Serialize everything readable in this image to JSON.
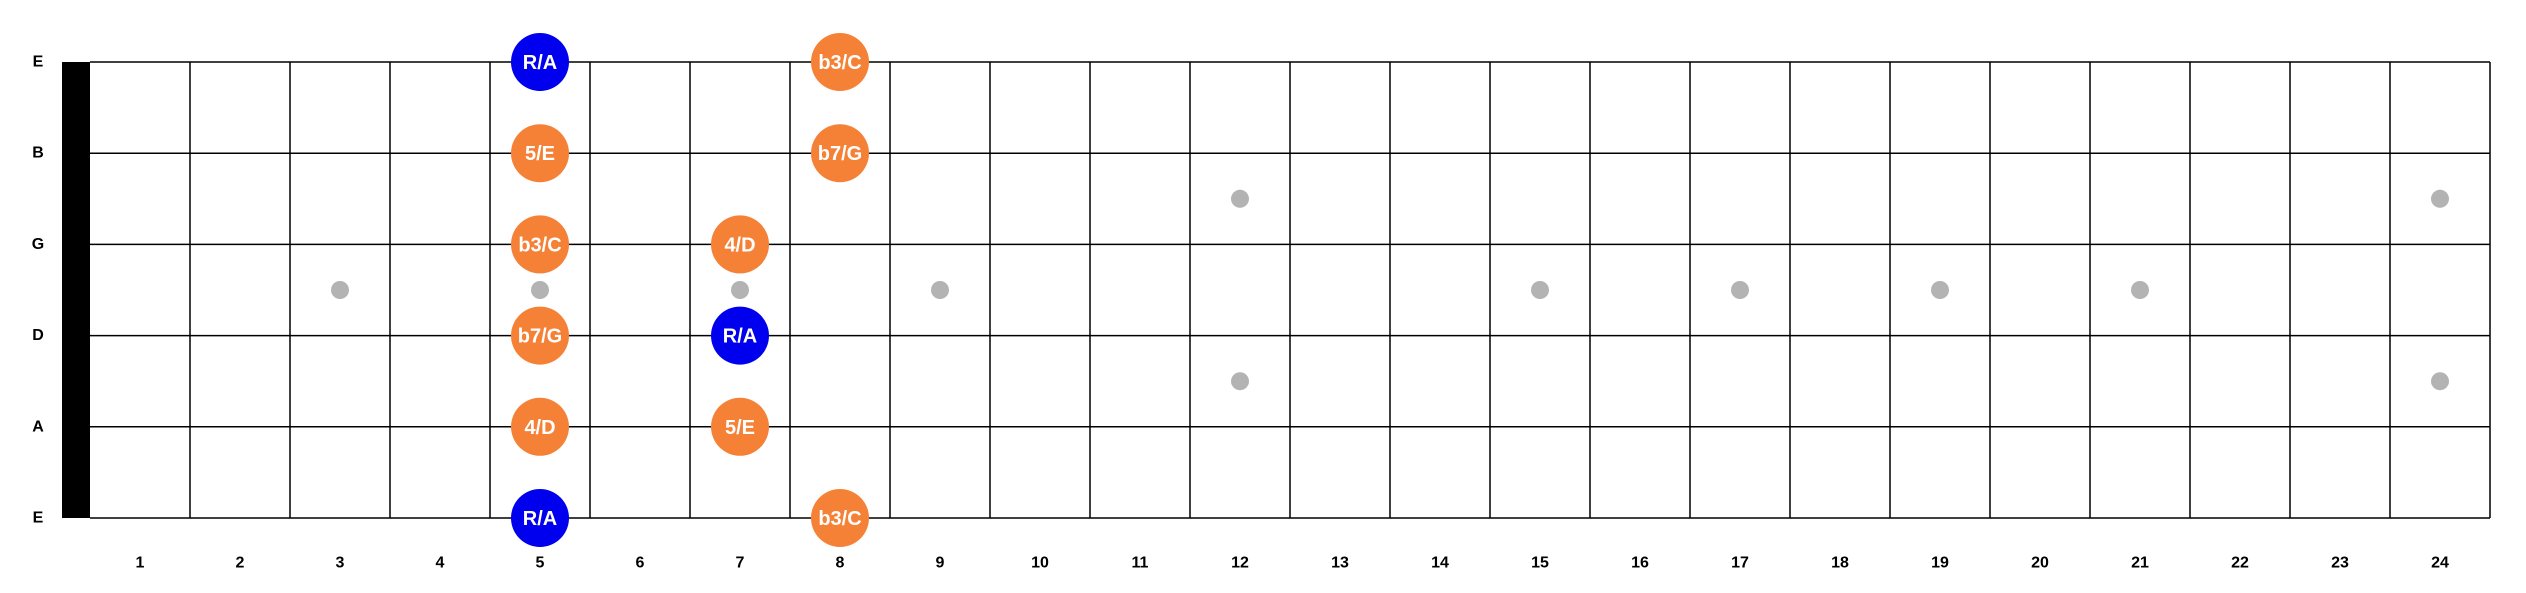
{
  "diagram": {
    "strings": [
      {
        "name": "E"
      },
      {
        "name": "B"
      },
      {
        "name": "G"
      },
      {
        "name": "D"
      },
      {
        "name": "A"
      },
      {
        "name": "E"
      }
    ],
    "fret_count": 24,
    "fret_numbers": [
      "1",
      "2",
      "3",
      "4",
      "5",
      "6",
      "7",
      "8",
      "9",
      "10",
      "11",
      "12",
      "13",
      "14",
      "15",
      "16",
      "17",
      "18",
      "19",
      "20",
      "21",
      "22",
      "23",
      "24"
    ],
    "inlay_markers": [
      {
        "fret": 3,
        "between_strings": [
          2,
          3
        ]
      },
      {
        "fret": 5,
        "between_strings": [
          2,
          3
        ]
      },
      {
        "fret": 7,
        "between_strings": [
          2,
          3
        ]
      },
      {
        "fret": 9,
        "between_strings": [
          2,
          3
        ]
      },
      {
        "fret": 12,
        "between_strings": [
          1,
          2
        ]
      },
      {
        "fret": 12,
        "between_strings": [
          3,
          4
        ]
      },
      {
        "fret": 15,
        "between_strings": [
          2,
          3
        ]
      },
      {
        "fret": 17,
        "between_strings": [
          2,
          3
        ]
      },
      {
        "fret": 19,
        "between_strings": [
          2,
          3
        ]
      },
      {
        "fret": 21,
        "between_strings": [
          2,
          3
        ]
      },
      {
        "fret": 24,
        "between_strings": [
          1,
          2
        ]
      },
      {
        "fret": 24,
        "between_strings": [
          3,
          4
        ]
      }
    ],
    "notes": [
      {
        "string": 0,
        "fret": 5,
        "label": "R/A",
        "type": "root"
      },
      {
        "string": 0,
        "fret": 8,
        "label": "b3/C",
        "type": "scale"
      },
      {
        "string": 1,
        "fret": 5,
        "label": "5/E",
        "type": "scale"
      },
      {
        "string": 1,
        "fret": 8,
        "label": "b7/G",
        "type": "scale"
      },
      {
        "string": 2,
        "fret": 5,
        "label": "b3/C",
        "type": "scale"
      },
      {
        "string": 2,
        "fret": 7,
        "label": "4/D",
        "type": "scale"
      },
      {
        "string": 3,
        "fret": 5,
        "label": "b7/G",
        "type": "scale"
      },
      {
        "string": 3,
        "fret": 7,
        "label": "R/A",
        "type": "root"
      },
      {
        "string": 4,
        "fret": 5,
        "label": "4/D",
        "type": "scale"
      },
      {
        "string": 4,
        "fret": 7,
        "label": "5/E",
        "type": "scale"
      },
      {
        "string": 5,
        "fret": 5,
        "label": "R/A",
        "type": "root"
      },
      {
        "string": 5,
        "fret": 8,
        "label": "b3/C",
        "type": "scale"
      }
    ],
    "colors": {
      "root": "#0000ee",
      "scale": "#f58137",
      "inlay": "#b3b3b3",
      "nut": "#000000",
      "line": "#000000",
      "label_text": "#ffffff"
    }
  }
}
